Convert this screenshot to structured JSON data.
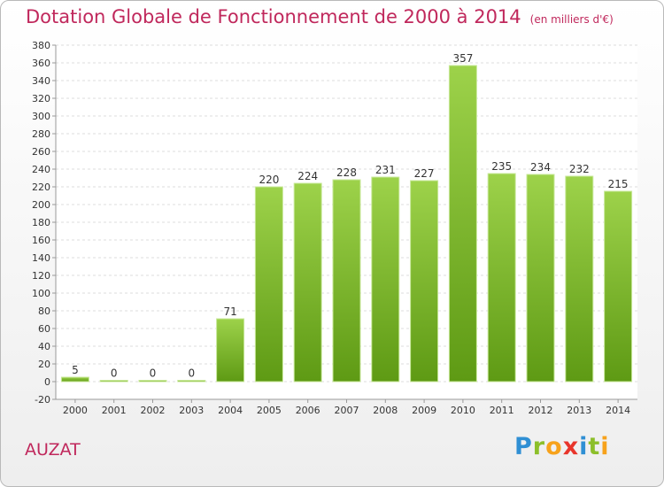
{
  "header": {
    "title": "Dotation Globale de Fonctionnement de 2000 à 2014",
    "unit": "(en milliers d'€)"
  },
  "commune": "AUZAT",
  "logo": {
    "letters": [
      "P",
      "r",
      "o",
      "x",
      "i",
      "t",
      "i"
    ],
    "colors": [
      "#2f8fd4",
      "#8cbf2a",
      "#f7a21b",
      "#e8352b",
      "#2f8fd4",
      "#8cbf2a",
      "#f7a21b"
    ]
  },
  "chart_data": {
    "type": "bar",
    "categories": [
      "2000",
      "2001",
      "2002",
      "2003",
      "2004",
      "2005",
      "2006",
      "2007",
      "2008",
      "2009",
      "2010",
      "2011",
      "2012",
      "2013",
      "2014"
    ],
    "values": [
      5,
      0,
      0,
      0,
      71,
      220,
      224,
      228,
      231,
      227,
      357,
      235,
      234,
      232,
      215
    ],
    "ylim": [
      -20,
      380
    ],
    "ytick_step": 20,
    "grid": true,
    "bar_color": "#7ab62c"
  }
}
